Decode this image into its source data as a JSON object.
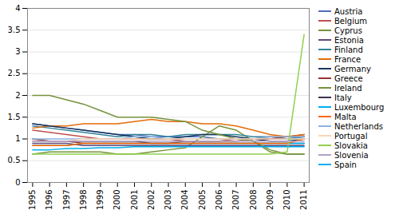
{
  "chart_data": {
    "type": "line",
    "x": [
      1995,
      1996,
      1997,
      1998,
      1999,
      2000,
      2001,
      2002,
      2003,
      2004,
      2005,
      2006,
      2007,
      2008,
      2009,
      2010,
      2011
    ],
    "series": [
      {
        "name": "Austria",
        "color": "#4F6EBF",
        "values": [
          1.35,
          1.3,
          1.25,
          1.2,
          1.15,
          1.1,
          1.1,
          1.05,
          1.05,
          1.05,
          1.05,
          1.0,
          1.0,
          1.0,
          1.0,
          1.0,
          1.05
        ]
      },
      {
        "name": "Belgium",
        "color": "#BF504D",
        "values": [
          1.2,
          1.15,
          1.1,
          1.05,
          1.0,
          1.0,
          1.0,
          1.0,
          1.0,
          0.95,
          0.95,
          0.95,
          1.0,
          1.0,
          1.05,
          1.05,
          1.1
        ]
      },
      {
        "name": "Cyprus",
        "color": "#77933C",
        "values": [
          0.65,
          0.7,
          0.7,
          0.7,
          0.7,
          0.65,
          0.65,
          0.7,
          0.75,
          0.8,
          1.05,
          1.3,
          1.2,
          0.95,
          0.7,
          0.65,
          0.65
        ]
      },
      {
        "name": "Estonia",
        "color": "#604A7B",
        "values": [
          0.9,
          0.9,
          0.9,
          0.85,
          0.85,
          0.85,
          0.85,
          0.85,
          0.85,
          0.85,
          0.85,
          0.85,
          0.85,
          0.85,
          0.85,
          0.85,
          0.85
        ]
      },
      {
        "name": "Finland",
        "color": "#31849B",
        "values": [
          1.3,
          1.25,
          1.2,
          1.15,
          1.1,
          1.05,
          1.1,
          1.1,
          1.05,
          1.1,
          1.1,
          1.1,
          1.1,
          1.05,
          1.05,
          1.0,
          1.05
        ]
      },
      {
        "name": "France",
        "color": "#E36C09",
        "values": [
          1.25,
          1.3,
          1.3,
          1.35,
          1.35,
          1.35,
          1.4,
          1.45,
          1.4,
          1.4,
          1.35,
          1.35,
          1.3,
          1.2,
          1.1,
          1.05,
          1.1
        ]
      },
      {
        "name": "Germany",
        "color": "#17375E",
        "values": [
          1.35,
          1.3,
          1.25,
          1.2,
          1.15,
          1.1,
          1.05,
          1.0,
          1.0,
          1.05,
          1.1,
          1.1,
          1.05,
          1.0,
          0.95,
          0.95,
          1.0
        ]
      },
      {
        "name": "Greece",
        "color": "#943634",
        "values": [
          1.0,
          0.95,
          0.95,
          0.9,
          0.9,
          0.9,
          0.9,
          0.9,
          0.9,
          0.95,
          0.95,
          0.95,
          0.95,
          1.0,
          1.0,
          1.05,
          1.05
        ]
      },
      {
        "name": "Ireland",
        "color": "#76923C",
        "values": [
          2.0,
          2.0,
          1.9,
          1.8,
          1.65,
          1.5,
          1.5,
          1.5,
          1.45,
          1.4,
          1.2,
          1.1,
          1.0,
          0.95,
          0.75,
          0.65,
          0.65
        ]
      },
      {
        "name": "Italy",
        "color": "#403151",
        "values": [
          0.95,
          0.95,
          0.95,
          0.95,
          0.95,
          0.95,
          0.95,
          0.9,
          0.9,
          0.9,
          0.9,
          0.9,
          0.9,
          0.9,
          0.9,
          0.9,
          0.9
        ]
      },
      {
        "name": "Luxembourg",
        "color": "#00B0F0",
        "values": [
          0.85,
          0.85,
          0.85,
          0.9,
          0.9,
          0.9,
          0.9,
          0.9,
          0.9,
          0.9,
          0.9,
          0.9,
          0.9,
          0.9,
          0.9,
          0.9,
          0.9
        ]
      },
      {
        "name": "Malta",
        "color": "#FF6600",
        "values": [
          0.85,
          0.85,
          0.85,
          0.9,
          0.9,
          0.9,
          0.9,
          0.9,
          0.9,
          0.9,
          0.9,
          0.9,
          0.9,
          0.9,
          0.9,
          0.9,
          1.0
        ]
      },
      {
        "name": "Netherlands",
        "color": "#8EB4E3",
        "values": [
          1.0,
          1.0,
          1.0,
          1.0,
          1.0,
          1.0,
          1.05,
          1.05,
          1.0,
          1.0,
          1.0,
          1.0,
          1.0,
          1.0,
          1.05,
          1.05,
          1.05
        ]
      },
      {
        "name": "Portugal",
        "color": "#FCD5B4",
        "values": [
          0.95,
          0.95,
          0.95,
          1.0,
          1.0,
          1.0,
          1.0,
          1.0,
          1.0,
          1.0,
          1.0,
          1.0,
          1.0,
          1.0,
          1.0,
          1.0,
          1.0
        ]
      },
      {
        "name": "Slovakia",
        "color": "#92D050",
        "values": [
          0.65,
          0.65,
          0.65,
          0.65,
          0.65,
          0.65,
          0.65,
          0.65,
          0.65,
          0.65,
          0.65,
          0.65,
          0.65,
          0.65,
          0.65,
          0.7,
          3.4
        ]
      },
      {
        "name": "Slovenia",
        "color": "#B3A2C7",
        "values": [
          0.95,
          0.95,
          0.95,
          0.95,
          0.95,
          0.95,
          0.95,
          0.95,
          0.95,
          0.95,
          0.95,
          0.95,
          0.95,
          0.95,
          0.95,
          0.95,
          0.95
        ]
      },
      {
        "name": "Spain",
        "color": "#00B0F0",
        "values": [
          0.75,
          0.75,
          0.78,
          0.78,
          0.8,
          0.8,
          0.82,
          0.82,
          0.82,
          0.82,
          0.82,
          0.82,
          0.82,
          0.82,
          0.82,
          0.82,
          0.82
        ]
      }
    ],
    "xlim": [
      1994.7,
      2011.3
    ],
    "xticks": [
      1995,
      1996,
      1997,
      1998,
      1999,
      2000,
      2001,
      2002,
      2003,
      2004,
      2005,
      2006,
      2007,
      2008,
      2009,
      2010,
      2011
    ],
    "ylim": [
      0,
      4
    ],
    "yticks": [
      0,
      0.5,
      1,
      1.5,
      2,
      2.5,
      3,
      3.5,
      4
    ],
    "grid": true,
    "legend": "right"
  }
}
